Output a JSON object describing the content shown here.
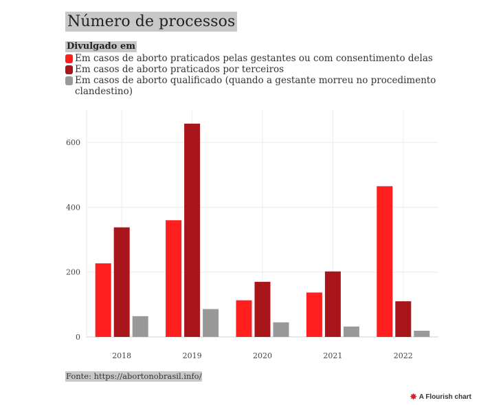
{
  "title": "Número de processos",
  "legend_title": "Divulgado em",
  "legend": [
    {
      "label": "Em casos de aborto praticados pelas gestantes ou com consentimento delas",
      "color": "#ff1f1f"
    },
    {
      "label": "Em casos de aborto praticados por terceiros",
      "color": "#a8161b"
    },
    {
      "label": "Em casos de aborto qualificado (quando a gestante morreu no procedimento clandestino)",
      "color": "#999999"
    }
  ],
  "source": "Fonte: https://abortonobrasil.info/",
  "credit": "A Flourish chart",
  "chart_data": {
    "type": "bar",
    "categories": [
      "2018",
      "2019",
      "2020",
      "2021",
      "2022"
    ],
    "series": [
      {
        "name": "Em casos de aborto praticados pelas gestantes ou com consentimento delas",
        "values": [
          227,
          360,
          113,
          137,
          465
        ],
        "color": "#ff1f1f"
      },
      {
        "name": "Em casos de aborto praticados por terceiros",
        "values": [
          338,
          658,
          170,
          202,
          110
        ],
        "color": "#a8161b"
      },
      {
        "name": "Em casos de aborto qualificado (quando a gestante morreu no procedimento clandestino)",
        "values": [
          64,
          86,
          45,
          32,
          19
        ],
        "color": "#999999"
      }
    ],
    "yticks": [
      0,
      200,
      400,
      600
    ],
    "ylim": [
      0,
      700
    ],
    "grid": true,
    "legend_position": "top"
  }
}
